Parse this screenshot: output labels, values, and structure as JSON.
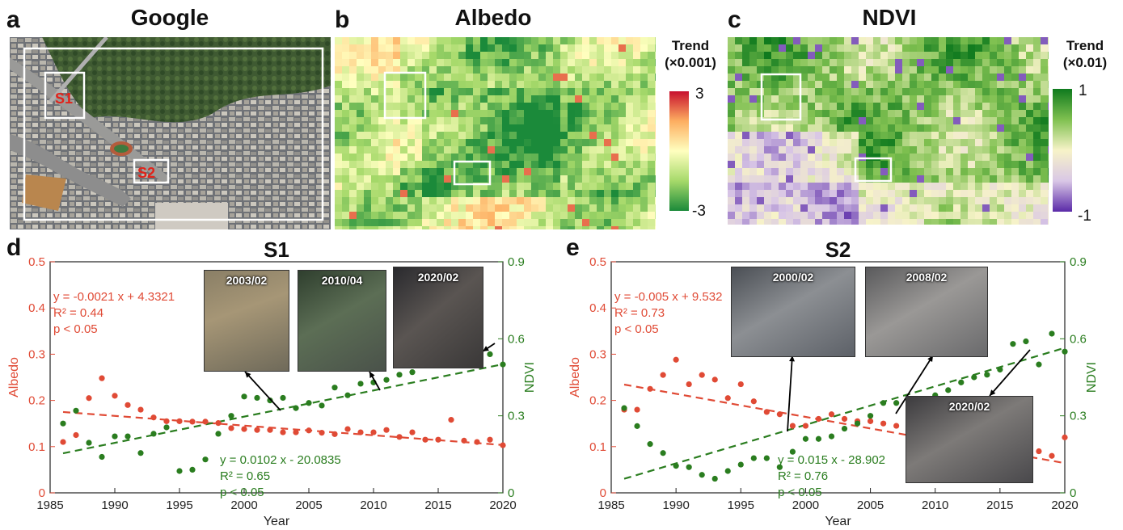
{
  "panels": {
    "a": {
      "letter": "a",
      "title": "Google",
      "site_labels": [
        "S1",
        "S2"
      ]
    },
    "b": {
      "letter": "b",
      "title": "Albedo",
      "colorbar": {
        "title_line1": "Trend",
        "title_line2": "(×0.001)",
        "max": "3",
        "min": "-3",
        "colors": [
          "#1b8a3a",
          "#a6d96a",
          "#ffffbf",
          "#fdae61",
          "#c8102e"
        ]
      }
    },
    "c": {
      "letter": "c",
      "title": "NDVI",
      "colorbar": {
        "title_line1": "Trend",
        "title_line2": "(×0.01)",
        "max": "1",
        "min": "-1",
        "colors": [
          "#5a2aa8",
          "#d9c7e6",
          "#f7f3c8",
          "#7fc050",
          "#0f7a1e"
        ]
      }
    }
  },
  "chart_data": [
    {
      "type": "scatter",
      "panel": "d",
      "title": "S1",
      "xlabel": "Year",
      "ylabel_left": "Albedo",
      "ylabel_right": "NDVI",
      "xlim": [
        1985,
        2020
      ],
      "ylim_left": [
        0,
        0.5
      ],
      "ylim_right": [
        0,
        0.9
      ],
      "x_ticks": [
        "1985",
        "1990",
        "1995",
        "2000",
        "2005",
        "2010",
        "2015",
        "2020"
      ],
      "y_ticks_left": [
        "0",
        "0.1",
        "0.2",
        "0.3",
        "0.4",
        "0.5"
      ],
      "y_ticks_right": [
        "0",
        "0.3",
        "0.6",
        "0.9"
      ],
      "albedo_color": "#e04a35",
      "ndvi_color": "#2a7d1f",
      "series": [
        {
          "name": "Albedo",
          "axis": "left",
          "x": [
            1986,
            1987,
            1988,
            1989,
            1990,
            1991,
            1992,
            1993,
            1994,
            1995,
            1996,
            1997,
            1998,
            1999,
            2000,
            2001,
            2002,
            2003,
            2004,
            2005,
            2006,
            2007,
            2008,
            2009,
            2010,
            2011,
            2012,
            2013,
            2014,
            2015,
            2016,
            2017,
            2018,
            2019,
            2020
          ],
          "y": [
            0.11,
            0.125,
            0.205,
            0.248,
            0.21,
            0.19,
            0.18,
            0.163,
            0.155,
            0.155,
            0.154,
            0.154,
            0.151,
            0.14,
            0.138,
            0.136,
            0.136,
            0.131,
            0.131,
            0.135,
            0.13,
            0.127,
            0.138,
            0.131,
            0.131,
            0.136,
            0.121,
            0.131,
            0.115,
            0.115,
            0.158,
            0.113,
            0.11,
            0.115,
            0.103
          ]
        },
        {
          "name": "NDVI",
          "axis": "right",
          "x": [
            1986,
            1987,
            1988,
            1989,
            1990,
            1991,
            1992,
            1993,
            1994,
            1995,
            1996,
            1997,
            1998,
            1999,
            2000,
            2001,
            2002,
            2003,
            2004,
            2005,
            2006,
            2007,
            2008,
            2009,
            2010,
            2011,
            2012,
            2013,
            2014,
            2015,
            2016,
            2017,
            2018,
            2019,
            2020
          ],
          "y": [
            0.27,
            0.32,
            0.195,
            0.14,
            0.22,
            0.22,
            0.155,
            0.23,
            0.255,
            0.085,
            0.09,
            0.13,
            0.23,
            0.3,
            0.375,
            0.37,
            0.36,
            0.37,
            0.33,
            0.35,
            0.34,
            0.41,
            0.38,
            0.425,
            0.43,
            0.44,
            0.46,
            0.47,
            0.5,
            0.5,
            0.53,
            0.5,
            0.52,
            0.54,
            0.5
          ]
        }
      ],
      "fits": [
        {
          "axis": "left",
          "x": [
            1986,
            2020
          ],
          "y": [
            0.1749,
            0.1035
          ]
        },
        {
          "axis": "right",
          "x": [
            1986,
            2020
          ],
          "y": [
            0.154,
            0.5008
          ]
        }
      ],
      "eq_albedo": [
        "y = -0.0021 x + 4.3321",
        "R² = 0.44",
        "p < 0.05"
      ],
      "eq_ndvi": [
        "y = 0.0102 x - 20.0835",
        "R² = 0.65",
        "p < 0.05"
      ],
      "photos": [
        "2003/02",
        "2010/04",
        "2020/02"
      ]
    },
    {
      "type": "scatter",
      "panel": "e",
      "title": "S2",
      "xlabel": "Year",
      "ylabel_left": "Albedo",
      "ylabel_right": "NDVI",
      "xlim": [
        1985,
        2020
      ],
      "ylim_left": [
        0,
        0.5
      ],
      "ylim_right": [
        0,
        0.9
      ],
      "x_ticks": [
        "1985",
        "1990",
        "1995",
        "2000",
        "2005",
        "2010",
        "2015",
        "2020"
      ],
      "y_ticks_left": [
        "0",
        "0.1",
        "0.2",
        "0.3",
        "0.4",
        "0.5"
      ],
      "y_ticks_right": [
        "0",
        "0.3",
        "0.6",
        "0.9"
      ],
      "albedo_color": "#e04a35",
      "ndvi_color": "#2a7d1f",
      "series": [
        {
          "name": "Albedo",
          "axis": "left",
          "x": [
            1986,
            1987,
            1988,
            1989,
            1990,
            1991,
            1992,
            1993,
            1994,
            1995,
            1996,
            1997,
            1998,
            1999,
            2000,
            2001,
            2002,
            2003,
            2004,
            2005,
            2006,
            2007,
            2008,
            2009,
            2010,
            2011,
            2012,
            2013,
            2014,
            2015,
            2016,
            2017,
            2018,
            2019,
            2020
          ],
          "y": [
            0.18,
            0.18,
            0.225,
            0.255,
            0.288,
            0.235,
            0.255,
            0.245,
            0.205,
            0.235,
            0.198,
            0.175,
            0.17,
            0.145,
            0.145,
            0.16,
            0.17,
            0.16,
            0.155,
            0.155,
            0.15,
            0.145,
            0.145,
            0.14,
            0.13,
            0.125,
            0.13,
            0.12,
            0.115,
            0.12,
            0.1,
            0.095,
            0.09,
            0.08,
            0.12
          ]
        },
        {
          "name": "NDVI",
          "axis": "right",
          "x": [
            1986,
            1987,
            1988,
            1989,
            1990,
            1991,
            1992,
            1993,
            1994,
            1995,
            1996,
            1997,
            1998,
            1999,
            2000,
            2001,
            2002,
            2003,
            2004,
            2005,
            2006,
            2007,
            2008,
            2009,
            2010,
            2011,
            2012,
            2013,
            2014,
            2015,
            2016,
            2017,
            2018,
            2019,
            2020
          ],
          "y": [
            0.33,
            0.26,
            0.19,
            0.155,
            0.105,
            0.1,
            0.07,
            0.055,
            0.085,
            0.11,
            0.135,
            0.135,
            0.1,
            0.16,
            0.21,
            0.21,
            0.22,
            0.25,
            0.27,
            0.3,
            0.35,
            0.35,
            0.32,
            0.36,
            0.38,
            0.4,
            0.43,
            0.45,
            0.46,
            0.48,
            0.58,
            0.59,
            0.5,
            0.62,
            0.55
          ]
        }
      ],
      "fits": [
        {
          "axis": "left",
          "x": [
            1986,
            2020
          ],
          "y": [
            0.2343,
            0.0643
          ]
        },
        {
          "axis": "right",
          "x": [
            1986,
            2020
          ],
          "y": [
            0.0548,
            0.5648
          ]
        }
      ],
      "eq_albedo": [
        "y = -0.005 x + 9.532",
        "R² = 0.73",
        "p < 0.05"
      ],
      "eq_ndvi": [
        "y = 0.015 x - 28.902",
        "R² = 0.76",
        "p < 0.05"
      ],
      "photos": [
        "2000/02",
        "2008/02",
        "2020/02"
      ]
    }
  ]
}
